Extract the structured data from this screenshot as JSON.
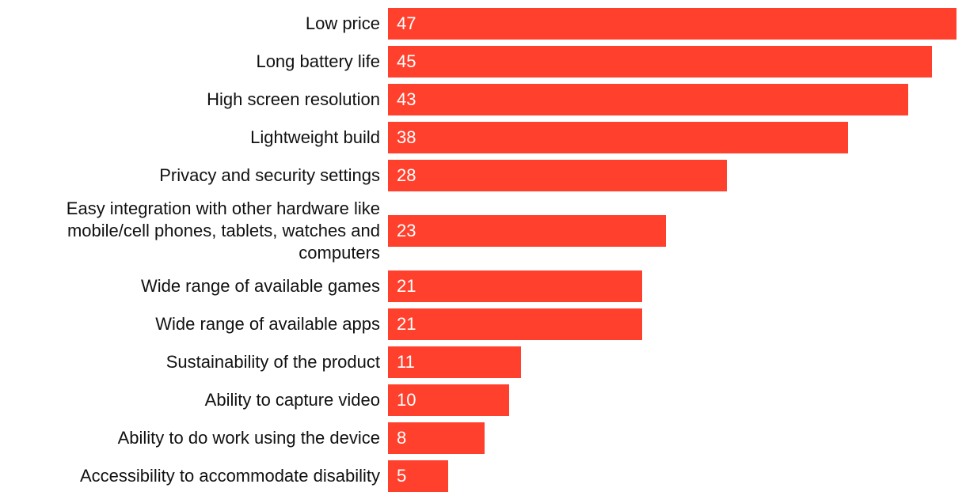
{
  "colors": {
    "bar": "#ff402d",
    "value_text": "#ffffff",
    "label_text": "#111111",
    "background": "#ffffff"
  },
  "chart_data": {
    "type": "bar",
    "orientation": "horizontal",
    "title": "",
    "xlabel": "",
    "ylabel": "",
    "xlim": [
      0,
      47
    ],
    "grid": false,
    "legend": "none",
    "categories": [
      "Low price",
      "Long battery life",
      "High screen resolution",
      "Lightweight build",
      "Privacy and security settings",
      "Easy integration with other hardware like mobile/cell phones, tablets, watches and computers",
      "Wide range of available games",
      "Wide range of available apps",
      "Sustainability of the product",
      "Ability to capture video",
      "Ability to do work using the device",
      "Accessibility to accommodate disability"
    ],
    "values": [
      47,
      45,
      43,
      38,
      28,
      23,
      21,
      21,
      11,
      10,
      8,
      5
    ]
  }
}
